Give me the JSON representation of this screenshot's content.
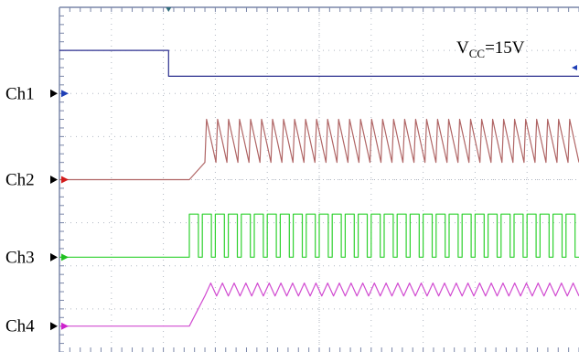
{
  "annotation": {
    "main": "V",
    "sub": "CC",
    "tail": "=15V"
  },
  "colors": {
    "background": "#ffffff",
    "grid_dot": "#b0b7c2",
    "frame": "#7a86a8",
    "marker_blue": "#1f3fb6",
    "marker_red": "#d11b1b",
    "marker_green": "#20c020",
    "marker_magenta": "#cc22cc"
  },
  "chart_data": {
    "type": "line",
    "title": "",
    "xlabel": "",
    "ylabel": "",
    "grid": true,
    "x_divisions": 10,
    "y_divisions": 8,
    "series": [
      {
        "name": "Ch1",
        "color": "#2b2f8f",
        "waveform": "step-down",
        "level_start_div": 7.0,
        "level_end_div": 6.4,
        "step_at_div": 2.1
      },
      {
        "name": "Ch2",
        "color": "#b06565",
        "waveform": "sawtooth",
        "level_div": 4.0,
        "rise_start_div": 2.5,
        "rise_end_div": 2.8,
        "peak_div": 5.4,
        "trough_div": 4.4,
        "cycles": 34
      },
      {
        "name": "Ch3",
        "color": "#2fd12f",
        "waveform": "pulse-train",
        "level_div": 2.2,
        "high_div": 3.2,
        "start_div": 2.5,
        "pulses": 30,
        "duty": 0.7
      },
      {
        "name": "Ch4",
        "color": "#d14bd1",
        "waveform": "triangle",
        "level_div": 0.6,
        "rise_start_div": 2.5,
        "rise_end_div": 2.8,
        "peak_div": 1.6,
        "trough_div": 1.3,
        "cycles": 32
      }
    ]
  }
}
